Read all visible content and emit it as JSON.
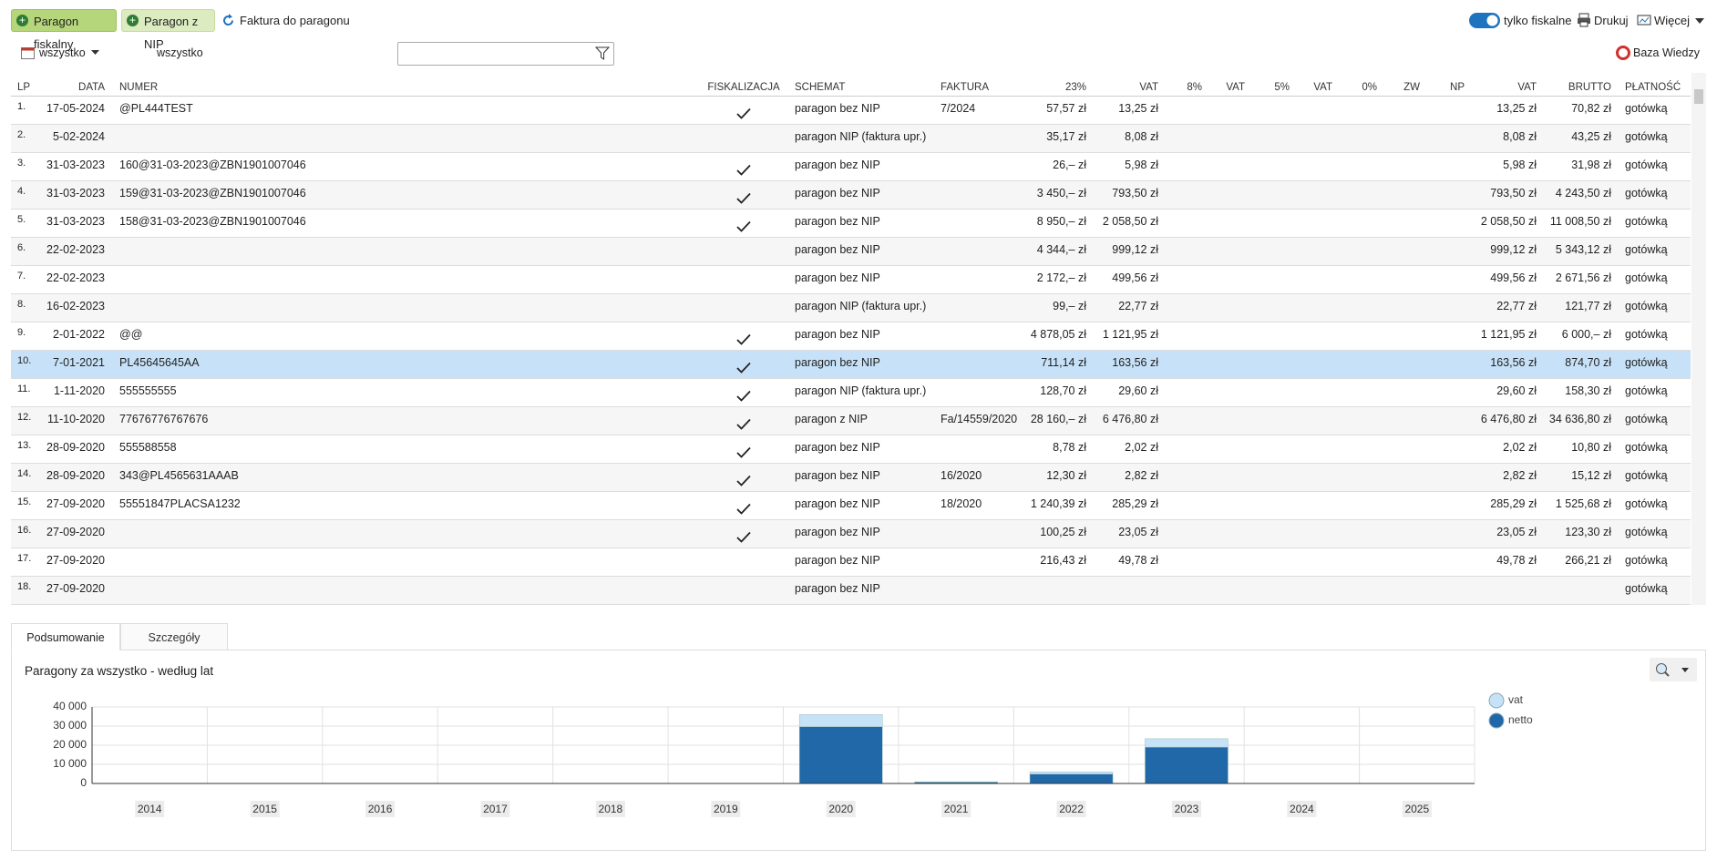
{
  "toolbar": {
    "buttons": [
      "Paragon fiskalny",
      "Paragon z NIP",
      "Faktura do paragonu"
    ],
    "toggle": "tylko fiskalne",
    "print": "Drukuj",
    "more": "Więcej"
  },
  "filter": {
    "period": "wszystko",
    "period_label": "wszystko",
    "help": "Baza Wiedzy"
  },
  "table": {
    "columns": [
      "LP",
      "DATA",
      "NUMER",
      "FISKALIZACJA",
      "SCHEMAT",
      "FAKTURA",
      "23%",
      "VAT",
      "8%",
      "VAT",
      "5%",
      "VAT",
      "0%",
      "ZW",
      "NP",
      "VAT",
      "BRUTTO",
      "PŁATNOŚĆ"
    ],
    "selected_row": 9,
    "rows": [
      {
        "lp": "1.",
        "data": "17-05-2024",
        "numer": "@PL444TEST",
        "fiskalizacja": true,
        "schemat": "paragon bez NIP",
        "faktura": "7/2024",
        "netto23": "57,57 zł",
        "vat23": "13,25 zł",
        "vat": "13,25 zł",
        "brutto": "70,82 zł",
        "platnosc": "gotówką"
      },
      {
        "lp": "2.",
        "data": "5-02-2024",
        "schemat": "paragon NIP (faktura upr.)",
        "netto23": "35,17 zł",
        "vat23": "8,08 zł",
        "vat": "8,08 zł",
        "brutto": "43,25 zł",
        "platnosc": "gotówką"
      },
      {
        "lp": "3.",
        "data": "31-03-2023",
        "numer": "160@31-03-2023@ZBN1901007046",
        "fiskalizacja": true,
        "schemat": "paragon bez NIP",
        "netto23": "26,– zł",
        "vat23": "5,98 zł",
        "vat": "5,98 zł",
        "brutto": "31,98 zł",
        "platnosc": "gotówką"
      },
      {
        "lp": "4.",
        "data": "31-03-2023",
        "numer": "159@31-03-2023@ZBN1901007046",
        "fiskalizacja": true,
        "schemat": "paragon bez NIP",
        "netto23": "3 450,– zł",
        "vat23": "793,50 zł",
        "vat": "793,50 zł",
        "brutto": "4 243,50 zł",
        "platnosc": "gotówką"
      },
      {
        "lp": "5.",
        "data": "31-03-2023",
        "numer": "158@31-03-2023@ZBN1901007046",
        "fiskalizacja": true,
        "schemat": "paragon bez NIP",
        "netto23": "8 950,– zł",
        "vat23": "2 058,50 zł",
        "vat": "2 058,50 zł",
        "brutto": "11 008,50 zł",
        "platnosc": "gotówką"
      },
      {
        "lp": "6.",
        "data": "22-02-2023",
        "schemat": "paragon bez NIP",
        "netto23": "4 344,– zł",
        "vat23": "999,12 zł",
        "vat": "999,12 zł",
        "brutto": "5 343,12 zł",
        "platnosc": "gotówką"
      },
      {
        "lp": "7.",
        "data": "22-02-2023",
        "schemat": "paragon bez NIP",
        "netto23": "2 172,– zł",
        "vat23": "499,56 zł",
        "vat": "499,56 zł",
        "brutto": "2 671,56 zł",
        "platnosc": "gotówką"
      },
      {
        "lp": "8.",
        "data": "16-02-2023",
        "schemat": "paragon NIP (faktura upr.)",
        "netto23": "99,– zł",
        "vat23": "22,77 zł",
        "vat": "22,77 zł",
        "brutto": "121,77 zł",
        "platnosc": "gotówką"
      },
      {
        "lp": "9.",
        "data": "2-01-2022",
        "numer": "@@",
        "fiskalizacja": true,
        "schemat": "paragon bez NIP",
        "netto23": "4 878,05 zł",
        "vat23": "1 121,95 zł",
        "vat": "1 121,95 zł",
        "brutto": "6 000,– zł",
        "platnosc": "gotówką"
      },
      {
        "lp": "10.",
        "data": "7-01-2021",
        "numer": "PL45645645AA",
        "fiskalizacja": true,
        "schemat": "paragon bez NIP",
        "netto23": "711,14 zł",
        "vat23": "163,56 zł",
        "vat": "163,56 zł",
        "brutto": "874,70 zł",
        "platnosc": "gotówką"
      },
      {
        "lp": "11.",
        "data": "1-11-2020",
        "numer": "555555555",
        "fiskalizacja": true,
        "schemat": "paragon NIP (faktura upr.)",
        "netto23": "128,70 zł",
        "vat23": "29,60 zł",
        "vat": "29,60 zł",
        "brutto": "158,30 zł",
        "platnosc": "gotówką"
      },
      {
        "lp": "12.",
        "data": "11-10-2020",
        "numer": "77676776767676",
        "fiskalizacja": true,
        "schemat": "paragon z NIP",
        "faktura": "Fa/14559/2020",
        "netto23": "28 160,– zł",
        "vat23": "6 476,80 zł",
        "vat": "6 476,80 zł",
        "brutto": "34 636,80 zł",
        "platnosc": "gotówką"
      },
      {
        "lp": "13.",
        "data": "28-09-2020",
        "numer": "555588558",
        "fiskalizacja": true,
        "schemat": "paragon bez NIP",
        "netto23": "8,78 zł",
        "vat23": "2,02 zł",
        "vat": "2,02 zł",
        "brutto": "10,80 zł",
        "platnosc": "gotówką"
      },
      {
        "lp": "14.",
        "data": "28-09-2020",
        "numer": "343@PL4565631AAAB",
        "fiskalizacja": true,
        "schemat": "paragon bez NIP",
        "faktura": "16/2020",
        "netto23": "12,30 zł",
        "vat23": "2,82 zł",
        "vat": "2,82 zł",
        "brutto": "15,12 zł",
        "platnosc": "gotówką"
      },
      {
        "lp": "15.",
        "data": "27-09-2020",
        "numer": "55551847PLACSA1232",
        "fiskalizacja": true,
        "schemat": "paragon bez NIP",
        "faktura": "18/2020",
        "netto23": "1 240,39 zł",
        "vat23": "285,29 zł",
        "vat": "285,29 zł",
        "brutto": "1 525,68 zł",
        "platnosc": "gotówką"
      },
      {
        "lp": "16.",
        "data": "27-09-2020",
        "fiskalizacja": true,
        "schemat": "paragon bez NIP",
        "netto23": "100,25 zł",
        "vat23": "23,05 zł",
        "vat": "23,05 zł",
        "brutto": "123,30 zł",
        "platnosc": "gotówką"
      },
      {
        "lp": "17.",
        "data": "27-09-2020",
        "schemat": "paragon bez NIP",
        "netto23": "216,43 zł",
        "vat23": "49,78 zł",
        "vat": "49,78 zł",
        "brutto": "266,21 zł",
        "platnosc": "gotówką"
      },
      {
        "lp": "18.",
        "data": "27-09-2020",
        "schemat": "paragon bez NIP",
        "platnosc": "gotówką"
      }
    ]
  },
  "tabs": [
    "Podsumowanie",
    "Szczegóły"
  ],
  "chart_data": {
    "type": "bar",
    "stacked": true,
    "title": "Paragony za wszystko - według lat",
    "categories": [
      "2014",
      "2015",
      "2016",
      "2017",
      "2018",
      "2019",
      "2020",
      "2021",
      "2022",
      "2023",
      "2024",
      "2025"
    ],
    "series": [
      {
        "name": "netto",
        "color": "#2068a8",
        "values": [
          0,
          0,
          0,
          0,
          0,
          0,
          29700,
          711,
          4878,
          19000,
          93,
          0
        ]
      },
      {
        "name": "vat",
        "color": "#c6e2f6",
        "values": [
          0,
          0,
          0,
          0,
          0,
          0,
          6300,
          164,
          1122,
          4400,
          21,
          0
        ]
      }
    ],
    "ylim": [
      0,
      40000
    ],
    "yticks": [
      0,
      {
        "value": 10000,
        "label": "10 000"
      },
      {
        "value": 20000,
        "label": "20 000"
      },
      {
        "value": 30000,
        "label": "30 000"
      },
      {
        "value": 40000,
        "label": "40 000"
      }
    ],
    "grid": true
  }
}
